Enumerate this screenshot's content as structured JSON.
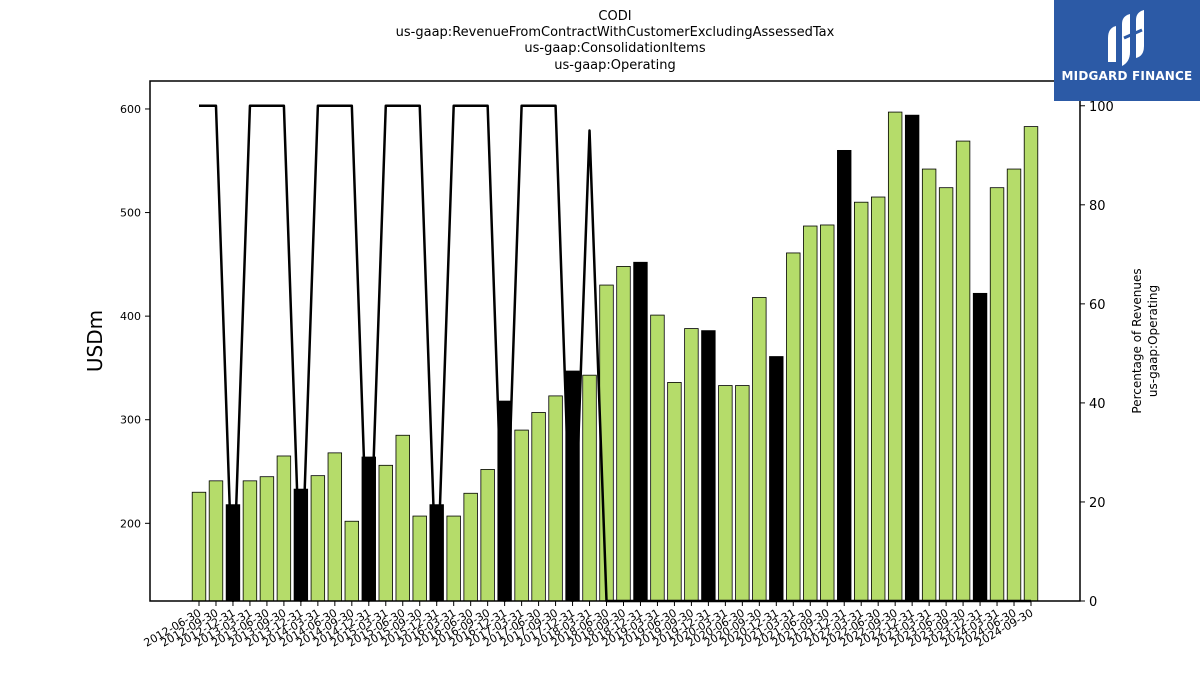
{
  "title_lines": [
    "CODI",
    "us-gaap:RevenueFromContractWithCustomerExcludingAssessedTax",
    "us-gaap:ConsolidationItems",
    "us-gaap:Operating"
  ],
  "logo": {
    "text": "MIDGARD FINANCE",
    "bg_color": "#2c5aa6"
  },
  "colors": {
    "bar_default": "#b5dc6a",
    "bar_highlight": "#000000",
    "bar_edge": "#000000",
    "line": "#000000"
  },
  "chart_data": {
    "type": "bar",
    "ylabel": "USDm",
    "y2label_lines": [
      "Percentage of Revenues",
      "us-gaap:Operating"
    ],
    "ylim": [
      125,
      627
    ],
    "y2lim": [
      0,
      105
    ],
    "yticks": [
      200,
      300,
      400,
      500,
      600
    ],
    "y2ticks": [
      0,
      20,
      40,
      60,
      80,
      100
    ],
    "categories": [
      "2012-06-30",
      "2012-09-30",
      "2012-12-31",
      "2013-03-31",
      "2013-06-30",
      "2013-09-30",
      "2013-12-31",
      "2014-03-31",
      "2014-06-30",
      "2014-09-30",
      "2014-12-31",
      "2015-03-31",
      "2015-06-30",
      "2015-09-30",
      "2015-12-31",
      "2016-03-31",
      "2016-06-30",
      "2016-09-30",
      "2016-12-31",
      "2017-03-31",
      "2017-06-30",
      "2017-09-30",
      "2017-12-31",
      "2018-03-31",
      "2018-06-30",
      "2018-09-30",
      "2018-12-31",
      "2019-03-31",
      "2019-06-30",
      "2019-09-30",
      "2019-12-31",
      "2020-03-31",
      "2020-06-30",
      "2020-09-30",
      "2020-12-31",
      "2021-03-31",
      "2021-06-30",
      "2021-09-30",
      "2021-12-31",
      "2022-03-31",
      "2022-06-30",
      "2022-09-30",
      "2022-12-31",
      "2023-03-31",
      "2023-06-30",
      "2023-09-30",
      "2023-12-31",
      "2024-03-31",
      "2024-06-30",
      "2024-09-30"
    ],
    "series": [
      {
        "type": "bar",
        "values": [
          230,
          241,
          218,
          241,
          245,
          265,
          233,
          246,
          268,
          202,
          264,
          256,
          285,
          207,
          218,
          207,
          229,
          252,
          318,
          290,
          307,
          323,
          347,
          343,
          430,
          448,
          452,
          401,
          336,
          388,
          386,
          333,
          333,
          418,
          361,
          461,
          487,
          488,
          560,
          510,
          515,
          597,
          594,
          542,
          524,
          569,
          422,
          524,
          542,
          583
        ],
        "highlight": [
          false,
          false,
          true,
          false,
          false,
          false,
          true,
          false,
          false,
          false,
          true,
          false,
          false,
          false,
          true,
          false,
          false,
          false,
          true,
          false,
          false,
          false,
          true,
          false,
          false,
          false,
          true,
          false,
          false,
          false,
          true,
          false,
          false,
          false,
          true,
          false,
          false,
          false,
          true,
          false,
          false,
          false,
          true,
          false,
          false,
          false,
          true,
          false,
          false,
          false
        ]
      },
      {
        "type": "line",
        "axis": "right",
        "values": [
          100,
          100,
          0,
          100,
          100,
          100,
          0,
          100,
          100,
          100,
          0,
          100,
          100,
          100,
          0,
          100,
          100,
          100,
          0,
          100,
          100,
          100,
          0,
          95,
          0,
          0,
          0,
          0,
          0,
          0,
          0,
          0,
          0,
          0,
          0,
          0,
          0,
          0,
          0,
          0,
          0,
          0,
          0,
          0,
          0,
          0,
          0,
          0,
          0,
          0
        ]
      }
    ]
  }
}
